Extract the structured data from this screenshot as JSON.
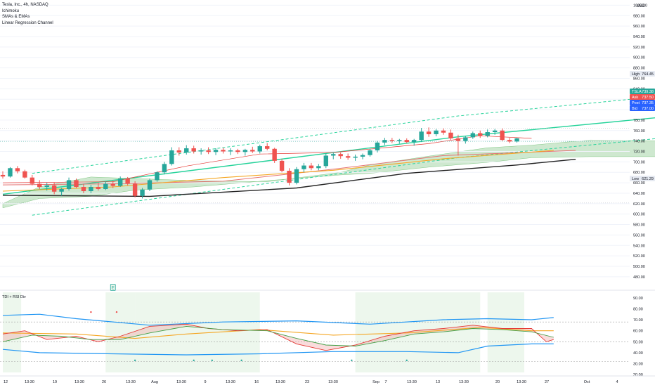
{
  "legend": {
    "symbol": "Tesla, Inc., 4h, NASDAQ",
    "indicators": [
      "Ichimoku",
      "SMAs & EMAs",
      "Linear Regression Channel"
    ]
  },
  "currency": "USD",
  "indicator_title": "TDI + RSI Div",
  "marker_label": "E",
  "price_tags": [
    {
      "label": "High",
      "value": "764.45",
      "color": "#e6eaf2",
      "text": "#131722"
    },
    {
      "label": "TSLA",
      "value": "739.38",
      "color": "#26a69a",
      "text": "#ffffff"
    },
    {
      "label": "Ask",
      "value": "737.50",
      "color": "#ef5350",
      "text": "#ffffff"
    },
    {
      "label": "Post",
      "value": "737.35",
      "color": "#2962ff",
      "text": "#ffffff"
    },
    {
      "label": "Bid",
      "value": "737.00",
      "color": "#2962ff",
      "text": "#ffffff"
    },
    {
      "label": "Low",
      "value": "621.29",
      "color": "#e6eaf2",
      "text": "#131722"
    }
  ],
  "colors": {
    "up": "#26a69a",
    "down": "#ef5350",
    "cloud": "#a5d6a7",
    "regression": "#26d39a",
    "sma_black": "#222222",
    "ema_orange": "#f5a623",
    "ema_red": "#e57373",
    "tdi_band": "#2196f3"
  },
  "chart_data": [
    {
      "type": "candlestick",
      "title": "Tesla, Inc., 4h, NASDAQ",
      "y_unit": "USD",
      "ylim": [
        465,
        1010
      ],
      "y_ticks": [
        1000,
        980,
        960,
        940,
        920,
        900,
        880,
        860,
        840,
        820,
        800,
        780,
        760,
        740,
        720,
        700,
        680,
        660,
        640,
        620,
        600,
        580,
        560,
        540,
        520,
        500,
        480
      ],
      "y_tick_labels": [
        "1000.00",
        "980.00",
        "960.00",
        "940.00",
        "920.00",
        "900.00",
        "880.00",
        "860.00",
        "840.00",
        "820.00",
        "800.00",
        "780.00",
        "760.00",
        "740.00",
        "720.00",
        "700.00",
        "680.00",
        "660.00",
        "640.00",
        "620.00",
        "600.00",
        "580.00",
        "560.00",
        "540.00",
        "520.00",
        "500.00",
        "480.00"
      ],
      "x_tick_labels": [
        "12",
        "13:30",
        "19",
        "13:30",
        "26",
        "13:30",
        "Aug",
        "13:30",
        "9",
        "13:30",
        "16",
        "13:30",
        "23",
        "13:30",
        "Sep",
        "7",
        "13:30",
        "13",
        "13:30",
        "20",
        "13:30",
        "27",
        "Oct",
        "4"
      ],
      "candles": [
        {
          "o": 675,
          "h": 682,
          "l": 668,
          "c": 672
        },
        {
          "o": 672,
          "h": 690,
          "l": 670,
          "c": 688
        },
        {
          "o": 688,
          "h": 692,
          "l": 678,
          "c": 682
        },
        {
          "o": 682,
          "h": 685,
          "l": 668,
          "c": 670
        },
        {
          "o": 670,
          "h": 675,
          "l": 655,
          "c": 658
        },
        {
          "o": 658,
          "h": 665,
          "l": 648,
          "c": 652
        },
        {
          "o": 652,
          "h": 660,
          "l": 645,
          "c": 655
        },
        {
          "o": 655,
          "h": 660,
          "l": 638,
          "c": 643
        },
        {
          "o": 643,
          "h": 650,
          "l": 635,
          "c": 648
        },
        {
          "o": 648,
          "h": 670,
          "l": 645,
          "c": 665
        },
        {
          "o": 665,
          "h": 668,
          "l": 650,
          "c": 652
        },
        {
          "o": 652,
          "h": 658,
          "l": 640,
          "c": 644
        },
        {
          "o": 644,
          "h": 656,
          "l": 640,
          "c": 652
        },
        {
          "o": 652,
          "h": 660,
          "l": 645,
          "c": 648
        },
        {
          "o": 648,
          "h": 662,
          "l": 646,
          "c": 658
        },
        {
          "o": 658,
          "h": 664,
          "l": 650,
          "c": 654
        },
        {
          "o": 654,
          "h": 672,
          "l": 652,
          "c": 668
        },
        {
          "o": 668,
          "h": 671,
          "l": 655,
          "c": 658
        },
        {
          "o": 658,
          "h": 663,
          "l": 632,
          "c": 635
        },
        {
          "o": 635,
          "h": 650,
          "l": 630,
          "c": 647
        },
        {
          "o": 647,
          "h": 668,
          "l": 644,
          "c": 665
        },
        {
          "o": 665,
          "h": 682,
          "l": 662,
          "c": 680
        },
        {
          "o": 680,
          "h": 700,
          "l": 676,
          "c": 696
        },
        {
          "o": 696,
          "h": 728,
          "l": 693,
          "c": 722
        },
        {
          "o": 722,
          "h": 728,
          "l": 712,
          "c": 718
        },
        {
          "o": 718,
          "h": 732,
          "l": 714,
          "c": 726
        },
        {
          "o": 726,
          "h": 731,
          "l": 716,
          "c": 720
        },
        {
          "o": 720,
          "h": 726,
          "l": 714,
          "c": 722
        },
        {
          "o": 722,
          "h": 728,
          "l": 715,
          "c": 719
        },
        {
          "o": 719,
          "h": 726,
          "l": 713,
          "c": 723
        },
        {
          "o": 723,
          "h": 727,
          "l": 716,
          "c": 720
        },
        {
          "o": 720,
          "h": 726,
          "l": 713,
          "c": 722
        },
        {
          "o": 722,
          "h": 725,
          "l": 715,
          "c": 719
        },
        {
          "o": 719,
          "h": 725,
          "l": 712,
          "c": 723
        },
        {
          "o": 723,
          "h": 729,
          "l": 717,
          "c": 720
        },
        {
          "o": 720,
          "h": 733,
          "l": 716,
          "c": 730
        },
        {
          "o": 730,
          "h": 736,
          "l": 722,
          "c": 725
        },
        {
          "o": 725,
          "h": 727,
          "l": 698,
          "c": 702
        },
        {
          "o": 702,
          "h": 706,
          "l": 680,
          "c": 683
        },
        {
          "o": 683,
          "h": 688,
          "l": 655,
          "c": 660
        },
        {
          "o": 660,
          "h": 690,
          "l": 657,
          "c": 686
        },
        {
          "o": 686,
          "h": 698,
          "l": 680,
          "c": 693
        },
        {
          "o": 693,
          "h": 698,
          "l": 684,
          "c": 688
        },
        {
          "o": 688,
          "h": 696,
          "l": 684,
          "c": 692
        },
        {
          "o": 692,
          "h": 716,
          "l": 688,
          "c": 712
        },
        {
          "o": 712,
          "h": 718,
          "l": 705,
          "c": 715
        },
        {
          "o": 715,
          "h": 718,
          "l": 706,
          "c": 711
        },
        {
          "o": 711,
          "h": 716,
          "l": 704,
          "c": 708
        },
        {
          "o": 708,
          "h": 714,
          "l": 702,
          "c": 710
        },
        {
          "o": 710,
          "h": 716,
          "l": 705,
          "c": 713
        },
        {
          "o": 713,
          "h": 725,
          "l": 710,
          "c": 722
        },
        {
          "o": 722,
          "h": 740,
          "l": 718,
          "c": 737
        },
        {
          "o": 737,
          "h": 746,
          "l": 732,
          "c": 742
        },
        {
          "o": 742,
          "h": 746,
          "l": 736,
          "c": 740
        },
        {
          "o": 740,
          "h": 744,
          "l": 735,
          "c": 742
        },
        {
          "o": 742,
          "h": 745,
          "l": 736,
          "c": 738
        },
        {
          "o": 738,
          "h": 744,
          "l": 731,
          "c": 742
        },
        {
          "o": 742,
          "h": 765,
          "l": 738,
          "c": 758
        },
        {
          "o": 758,
          "h": 766,
          "l": 748,
          "c": 753
        },
        {
          "o": 753,
          "h": 763,
          "l": 749,
          "c": 760
        },
        {
          "o": 760,
          "h": 764,
          "l": 752,
          "c": 756
        },
        {
          "o": 756,
          "h": 762,
          "l": 742,
          "c": 745
        },
        {
          "o": 745,
          "h": 752,
          "l": 712,
          "c": 740
        },
        {
          "o": 740,
          "h": 750,
          "l": 735,
          "c": 747
        },
        {
          "o": 747,
          "h": 758,
          "l": 744,
          "c": 755
        },
        {
          "o": 755,
          "h": 760,
          "l": 746,
          "c": 750
        },
        {
          "o": 750,
          "h": 762,
          "l": 747,
          "c": 757
        },
        {
          "o": 757,
          "h": 763,
          "l": 752,
          "c": 760
        },
        {
          "o": 760,
          "h": 764,
          "l": 740,
          "c": 742
        },
        {
          "o": 742,
          "h": 746,
          "l": 736,
          "c": 739
        },
        {
          "o": 739,
          "h": 746,
          "l": 737,
          "c": 745
        }
      ],
      "high_line": 764.45,
      "low_line": 621.29,
      "last_price_line": 739.38,
      "regression_channel": {
        "center": [
          [
            0,
            638
          ],
          [
            62,
            748
          ],
          [
            90,
            786
          ]
        ],
        "upper": [
          [
            4,
            678
          ],
          [
            62,
            788
          ],
          [
            90,
            826
          ]
        ],
        "lower": [
          [
            4,
            598
          ],
          [
            62,
            708
          ],
          [
            90,
            746
          ]
        ]
      },
      "moving_averages": {
        "sma_black": [
          [
            0,
            636
          ],
          [
            20,
            634
          ],
          [
            40,
            650
          ],
          [
            55,
            678
          ],
          [
            70,
            694
          ],
          [
            78,
            705
          ]
        ],
        "ema_orange": [
          [
            0,
            644
          ],
          [
            15,
            652
          ],
          [
            30,
            670
          ],
          [
            45,
            684
          ],
          [
            60,
            706
          ],
          [
            75,
            722
          ]
        ],
        "ema_red": [
          [
            0,
            656
          ],
          [
            15,
            658
          ],
          [
            30,
            663
          ],
          [
            45,
            686
          ],
          [
            60,
            712
          ],
          [
            78,
            722
          ]
        ],
        "kijun": [
          [
            0,
            660
          ],
          [
            15,
            662
          ],
          [
            25,
            692
          ],
          [
            35,
            715
          ],
          [
            45,
            718
          ],
          [
            58,
            735
          ],
          [
            65,
            750
          ],
          [
            72,
            745
          ]
        ]
      },
      "cloud": {
        "span_a": [
          [
            0,
            620
          ],
          [
            5,
            652
          ],
          [
            12,
            671
          ],
          [
            18,
            668
          ],
          [
            26,
            664
          ],
          [
            36,
            662
          ],
          [
            46,
            680
          ],
          [
            50,
            694
          ],
          [
            58,
            711
          ],
          [
            66,
            727
          ],
          [
            72,
            732
          ],
          [
            80,
            742
          ],
          [
            90,
            740
          ],
          [
            93,
            740
          ]
        ],
        "span_b": [
          [
            0,
            612
          ],
          [
            5,
            630
          ],
          [
            12,
            634
          ],
          [
            18,
            646
          ],
          [
            26,
            652
          ],
          [
            36,
            664
          ],
          [
            46,
            675
          ],
          [
            50,
            678
          ],
          [
            58,
            690
          ],
          [
            66,
            699
          ],
          [
            72,
            708
          ],
          [
            80,
            710
          ],
          [
            90,
            710
          ],
          [
            93,
            710
          ]
        ]
      }
    },
    {
      "type": "line",
      "title": "TDI + RSI Div",
      "ylim": [
        22,
        95
      ],
      "y_ticks": [
        90,
        80,
        70,
        60,
        50,
        40,
        30,
        20
      ],
      "y_tick_labels": [
        "90.00",
        "80.00",
        "70.00",
        "60.00",
        "50.00",
        "40.00",
        "30.00",
        "20.00"
      ],
      "levels": [
        68,
        50,
        32
      ],
      "upper_band": [
        [
          0,
          74
        ],
        [
          5,
          75
        ],
        [
          10,
          71
        ],
        [
          20,
          65
        ],
        [
          30,
          68
        ],
        [
          40,
          69
        ],
        [
          50,
          66
        ],
        [
          60,
          70
        ],
        [
          66,
          71
        ],
        [
          72,
          70
        ],
        [
          75,
          72
        ]
      ],
      "lower_band": [
        [
          0,
          43
        ],
        [
          5,
          40
        ],
        [
          15,
          39
        ],
        [
          25,
          38
        ],
        [
          35,
          39
        ],
        [
          45,
          41
        ],
        [
          55,
          41
        ],
        [
          62,
          40
        ],
        [
          66,
          46
        ],
        [
          72,
          48
        ],
        [
          75,
          48
        ]
      ],
      "middle_band": [
        [
          0,
          58
        ],
        [
          10,
          57
        ],
        [
          18,
          53
        ],
        [
          25,
          57
        ],
        [
          35,
          61
        ],
        [
          45,
          56
        ],
        [
          55,
          58
        ],
        [
          65,
          63
        ],
        [
          72,
          60
        ],
        [
          75,
          60
        ]
      ],
      "rsi_fast": [
        [
          0,
          57
        ],
        [
          3,
          60
        ],
        [
          6,
          52
        ],
        [
          10,
          55
        ],
        [
          13,
          50
        ],
        [
          16,
          55
        ],
        [
          20,
          64
        ],
        [
          25,
          66
        ],
        [
          28,
          62
        ],
        [
          32,
          60
        ],
        [
          36,
          61
        ],
        [
          40,
          48
        ],
        [
          44,
          42
        ],
        [
          48,
          47
        ],
        [
          52,
          55
        ],
        [
          56,
          60
        ],
        [
          60,
          62
        ],
        [
          64,
          65
        ],
        [
          68,
          62
        ],
        [
          72,
          62
        ],
        [
          74,
          50
        ],
        [
          75,
          52
        ]
      ],
      "rsi_slow": [
        [
          0,
          50
        ],
        [
          4,
          56
        ],
        [
          8,
          55
        ],
        [
          12,
          52
        ],
        [
          16,
          52
        ],
        [
          20,
          58
        ],
        [
          25,
          64
        ],
        [
          30,
          61
        ],
        [
          36,
          60
        ],
        [
          40,
          53
        ],
        [
          44,
          47
        ],
        [
          48,
          46
        ],
        [
          52,
          51
        ],
        [
          56,
          57
        ],
        [
          60,
          59
        ],
        [
          64,
          62
        ],
        [
          68,
          61
        ],
        [
          72,
          59
        ],
        [
          75,
          54
        ]
      ]
    }
  ]
}
